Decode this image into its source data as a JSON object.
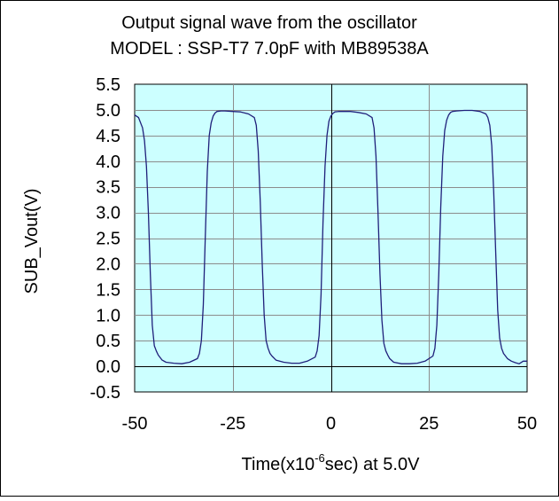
{
  "chart_data": {
    "type": "line",
    "title": "Output signal wave from the oscillator",
    "subtitle": "MODEL : SSP-T7 7.0pF with MB89538A",
    "xlabel": "Time(x10",
    "xlabel_exponent": "-6",
    "xlabel_suffix": "sec)  at  5.0V",
    "ylabel": "SUB_Vout(V)",
    "xlim": [
      -50,
      50
    ],
    "ylim": [
      -0.5,
      5.5
    ],
    "xticks": [
      "-50",
      "-25",
      "0",
      "25",
      "50"
    ],
    "yticks": [
      "-0.5",
      "0.0",
      "0.5",
      "1.0",
      "1.5",
      "2.0",
      "2.5",
      "3.0",
      "3.5",
      "4.0",
      "4.5",
      "5.0",
      "5.5"
    ],
    "grid": true,
    "plot_background": "#ccffff",
    "grid_color": "#8c8c8c",
    "series": [
      {
        "color": "#1f1f7a",
        "x": [
          -50,
          -49,
          -48,
          -47.5,
          -47,
          -46.5,
          -46,
          -45.5,
          -45,
          -44.5,
          -44,
          -43,
          -42,
          -40,
          -38,
          -36,
          -34,
          -33.5,
          -33,
          -32.5,
          -32,
          -31.5,
          -31,
          -30.5,
          -30,
          -29.5,
          -29,
          -28,
          -27,
          -25,
          -23,
          -21,
          -19.5,
          -19,
          -18.5,
          -18,
          -17.5,
          -17,
          -16.5,
          -16,
          -15.5,
          -15,
          -14,
          -12,
          -10,
          -8,
          -6,
          -4,
          -3.5,
          -3,
          -2.5,
          -2,
          -1.5,
          -1,
          -0.5,
          0,
          0.5,
          1,
          2,
          3,
          5,
          7,
          9,
          10.5,
          11,
          11.5,
          12,
          12.5,
          13,
          13.5,
          14,
          14.5,
          15,
          16,
          18,
          20,
          22,
          24,
          26,
          26.5,
          27,
          27.5,
          28,
          28.5,
          29,
          29.5,
          30,
          30.5,
          31,
          32,
          34,
          36,
          38,
          39.5,
          40,
          40.5,
          41,
          41.5,
          42,
          42.5,
          43,
          43.5,
          44,
          45,
          46,
          47,
          48,
          49,
          50
        ],
        "y": [
          4.9,
          4.85,
          4.65,
          4.4,
          3.9,
          3.0,
          1.8,
          0.8,
          0.4,
          0.3,
          0.22,
          0.12,
          0.08,
          0.06,
          0.05,
          0.08,
          0.15,
          0.25,
          0.5,
          1.2,
          2.5,
          3.8,
          4.5,
          4.75,
          4.88,
          4.94,
          4.97,
          4.98,
          4.98,
          4.97,
          4.96,
          4.92,
          4.85,
          4.7,
          4.2,
          3.2,
          2.0,
          1.0,
          0.5,
          0.35,
          0.25,
          0.2,
          0.12,
          0.08,
          0.06,
          0.06,
          0.1,
          0.18,
          0.3,
          0.6,
          1.4,
          2.8,
          3.9,
          4.5,
          4.78,
          4.88,
          4.93,
          4.96,
          4.97,
          4.97,
          4.97,
          4.95,
          4.92,
          4.85,
          4.65,
          4.1,
          3.0,
          1.8,
          0.9,
          0.45,
          0.3,
          0.22,
          0.15,
          0.08,
          0.05,
          0.05,
          0.06,
          0.1,
          0.2,
          0.35,
          0.8,
          1.8,
          3.1,
          4.1,
          4.6,
          4.8,
          4.9,
          4.95,
          4.97,
          4.98,
          4.99,
          4.99,
          4.97,
          4.92,
          4.85,
          4.7,
          4.3,
          3.4,
          2.2,
          1.1,
          0.55,
          0.35,
          0.25,
          0.15,
          0.1,
          0.07,
          0.05,
          0.1,
          0.1
        ]
      }
    ]
  }
}
